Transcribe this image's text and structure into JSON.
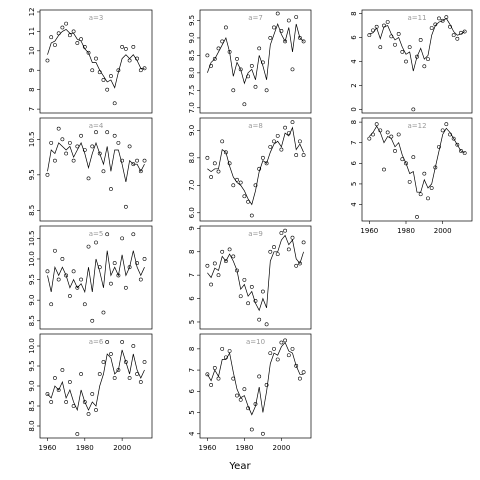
{
  "x_label": "Year",
  "chart_data": [
    {
      "type": "scatter",
      "label": "a=3",
      "xlim": [
        1956,
        2016
      ],
      "ylim": [
        6.8,
        12.1
      ],
      "yticks": [
        7,
        8,
        9,
        10,
        11,
        12
      ],
      "x": [
        1960,
        1962,
        1964,
        1966,
        1968,
        1970,
        1972,
        1974,
        1976,
        1978,
        1980,
        1982,
        1984,
        1986,
        1988,
        1990,
        1992,
        1994,
        1996,
        1998,
        2000,
        2002,
        2004,
        2006,
        2008,
        2010,
        2012
      ],
      "values": [
        9.5,
        10.7,
        10.3,
        10.9,
        11.2,
        11.4,
        10.8,
        11.0,
        10.4,
        10.6,
        10.2,
        9.9,
        9.0,
        9.6,
        8.9,
        8.5,
        8.0,
        8.7,
        7.3,
        9.0,
        10.2,
        10.1,
        9.5,
        10.2,
        9.6,
        9.0,
        9.1
      ],
      "smooth": [
        9.8,
        10.4,
        10.5,
        10.8,
        11.0,
        11.1,
        10.9,
        10.9,
        10.6,
        10.5,
        10.1,
        9.9,
        9.4,
        9.4,
        9.0,
        8.7,
        8.4,
        8.5,
        8.1,
        8.9,
        9.6,
        9.8,
        9.6,
        9.8,
        9.5,
        9.1,
        9.1
      ]
    },
    {
      "type": "scatter",
      "label": "a=4",
      "xlim": [
        1956,
        2016
      ],
      "ylim": [
        8.2,
        11.1
      ],
      "yticks": [
        8.5,
        9.5,
        10.5
      ],
      "x": [
        1960,
        1962,
        1964,
        1966,
        1968,
        1970,
        1972,
        1974,
        1976,
        1978,
        1980,
        1982,
        1984,
        1986,
        1988,
        1990,
        1992,
        1994,
        1996,
        1998,
        2000,
        2002,
        2004,
        2006,
        2008,
        2010,
        2012
      ],
      "values": [
        9.5,
        10.4,
        9.9,
        10.8,
        10.5,
        10.1,
        10.4,
        9.9,
        10.3,
        10.6,
        10.2,
        9.4,
        10.3,
        10.7,
        10.1,
        9.6,
        10.7,
        9.1,
        10.6,
        10.4,
        9.9,
        8.6,
        10.3,
        9.8,
        9.9,
        9.6,
        9.9
      ],
      "smooth": [
        9.6,
        10.2,
        10.1,
        10.4,
        10.3,
        10.2,
        10.3,
        10.0,
        10.2,
        10.4,
        10.1,
        9.7,
        10.1,
        10.4,
        10.1,
        9.8,
        10.3,
        9.6,
        10.2,
        10.2,
        9.8,
        9.3,
        9.9,
        9.8,
        9.8,
        9.6,
        9.8
      ]
    },
    {
      "type": "scatter",
      "label": "a=5",
      "xlim": [
        1956,
        2016
      ],
      "ylim": [
        8.3,
        10.8
      ],
      "yticks": [
        8.5,
        {
          "value": 9,
          "label": "9.0"
        },
        9.5,
        {
          "value": 10,
          "label": "10.0"
        },
        10.5
      ],
      "x": [
        1960,
        1962,
        1964,
        1966,
        1968,
        1970,
        1972,
        1974,
        1976,
        1978,
        1980,
        1982,
        1984,
        1986,
        1988,
        1990,
        1992,
        1994,
        1996,
        1998,
        2000,
        2002,
        2004,
        2006,
        2008,
        2010,
        2012
      ],
      "values": [
        9.7,
        8.9,
        10.2,
        9.5,
        10.0,
        9.6,
        9.1,
        9.7,
        9.3,
        9.5,
        8.9,
        10.3,
        8.5,
        10.4,
        9.8,
        8.7,
        10.6,
        9.4,
        9.9,
        9.6,
        10.5,
        9.3,
        9.8,
        10.6,
        9.9,
        9.5,
        10.0
      ],
      "smooth": [
        9.6,
        9.2,
        9.8,
        9.6,
        9.8,
        9.6,
        9.3,
        9.5,
        9.3,
        9.4,
        9.2,
        9.8,
        9.2,
        10.0,
        9.7,
        9.3,
        10.2,
        9.6,
        9.8,
        9.6,
        10.1,
        9.6,
        9.8,
        10.2,
        9.8,
        9.6,
        9.8
      ]
    },
    {
      "type": "scatter",
      "label": "a=6",
      "xlim": [
        1956,
        2016
      ],
      "ylim": [
        7.7,
        10.3
      ],
      "xticks": [
        1960,
        1980,
        2000
      ],
      "yticks": [
        {
          "value": 8,
          "label": "8.0"
        },
        8.5,
        {
          "value": 9,
          "label": "9.0"
        },
        9.5,
        {
          "value": 10,
          "label": "10.0"
        }
      ],
      "x": [
        1960,
        1962,
        1964,
        1966,
        1968,
        1970,
        1972,
        1974,
        1976,
        1978,
        1980,
        1982,
        1984,
        1986,
        1988,
        1990,
        1992,
        1994,
        1996,
        1998,
        2000,
        2002,
        2004,
        2006,
        2008,
        2010,
        2012
      ],
      "values": [
        8.8,
        8.6,
        9.2,
        8.9,
        9.4,
        8.6,
        9.1,
        8.5,
        7.8,
        9.3,
        8.6,
        8.3,
        8.8,
        8.4,
        9.3,
        9.6,
        10.1,
        9.8,
        9.2,
        9.4,
        10.1,
        9.6,
        9.2,
        10.0,
        9.3,
        9.1,
        9.6
      ],
      "smooth": [
        8.8,
        8.7,
        9.0,
        8.9,
        9.1,
        8.7,
        8.9,
        8.6,
        8.4,
        8.9,
        8.6,
        8.4,
        8.6,
        8.5,
        9.0,
        9.3,
        9.8,
        9.7,
        9.3,
        9.4,
        9.9,
        9.6,
        9.3,
        9.8,
        9.4,
        9.2,
        9.4
      ]
    },
    {
      "type": "scatter",
      "label": "a=7",
      "xlim": [
        1956,
        2016
      ],
      "ylim": [
        6.85,
        9.8
      ],
      "yticks": [
        {
          "value": 7,
          "label": "7.0"
        },
        7.5,
        {
          "value": 8,
          "label": "8.0"
        },
        8.5,
        {
          "value": 9,
          "label": "9.0"
        },
        9.5
      ],
      "x": [
        1960,
        1962,
        1964,
        1966,
        1968,
        1970,
        1972,
        1974,
        1976,
        1978,
        1980,
        1982,
        1984,
        1986,
        1988,
        1990,
        1992,
        1994,
        1996,
        1998,
        2000,
        2002,
        2004,
        2006,
        2008,
        2010,
        2012
      ],
      "values": [
        8.5,
        8.2,
        8.4,
        8.7,
        8.9,
        9.3,
        8.6,
        7.5,
        8.4,
        8.1,
        7.1,
        7.9,
        8.2,
        7.6,
        8.7,
        8.3,
        7.5,
        9.0,
        9.3,
        9.7,
        9.2,
        8.9,
        9.5,
        8.1,
        9.6,
        9.0,
        8.9
      ],
      "smooth": [
        8.0,
        8.3,
        8.4,
        8.6,
        8.8,
        9.0,
        8.6,
        7.9,
        8.3,
        8.1,
        7.7,
        8.0,
        8.1,
        7.8,
        8.5,
        8.2,
        7.8,
        8.8,
        9.1,
        9.4,
        9.1,
        8.9,
        9.3,
        8.6,
        9.4,
        9.0,
        8.9
      ]
    },
    {
      "type": "scatter",
      "label": "a=8",
      "xlim": [
        1956,
        2016
      ],
      "ylim": [
        5.7,
        9.45
      ],
      "yticks": [
        {
          "value": 6,
          "label": "6.0"
        },
        {
          "value": 7,
          "label": "7.0"
        },
        {
          "value": 8,
          "label": "8.0"
        },
        {
          "value": 9,
          "label": "9.0"
        }
      ],
      "x": [
        1960,
        1962,
        1964,
        1966,
        1968,
        1970,
        1972,
        1974,
        1976,
        1978,
        1980,
        1982,
        1984,
        1986,
        1988,
        1990,
        1992,
        1994,
        1996,
        1998,
        2000,
        2002,
        2004,
        2006,
        2008,
        2010,
        2012
      ],
      "values": [
        8.0,
        7.3,
        7.8,
        7.5,
        8.6,
        8.2,
        7.8,
        7.0,
        7.2,
        7.1,
        6.6,
        6.4,
        5.9,
        7.0,
        7.6,
        8.0,
        7.8,
        8.4,
        8.6,
        8.8,
        8.3,
        9.1,
        8.9,
        9.3,
        8.1,
        8.6,
        8.1
      ],
      "smooth": [
        7.6,
        7.5,
        7.6,
        7.6,
        8.3,
        8.2,
        7.7,
        7.3,
        7.1,
        7.0,
        6.8,
        6.5,
        6.3,
        6.8,
        7.5,
        7.9,
        7.8,
        8.2,
        8.5,
        8.6,
        8.4,
        8.9,
        8.8,
        9.1,
        8.3,
        8.5,
        8.2
      ]
    },
    {
      "type": "scatter",
      "label": "a=9",
      "xlim": [
        1956,
        2016
      ],
      "ylim": [
        4.7,
        9.1
      ],
      "yticks": [
        5,
        6,
        7,
        8,
        9
      ],
      "x": [
        1960,
        1962,
        1964,
        1966,
        1968,
        1970,
        1972,
        1974,
        1976,
        1978,
        1980,
        1982,
        1984,
        1986,
        1988,
        1990,
        1992,
        1994,
        1996,
        1998,
        2000,
        2002,
        2004,
        2006,
        2008,
        2010,
        2012
      ],
      "values": [
        7.4,
        6.6,
        7.5,
        7.0,
        8.0,
        7.6,
        8.1,
        7.8,
        7.2,
        6.1,
        6.8,
        5.8,
        6.5,
        5.9,
        5.1,
        6.3,
        4.9,
        8.0,
        8.2,
        7.9,
        8.8,
        8.9,
        8.1,
        8.6,
        7.4,
        7.5,
        8.4
      ],
      "smooth": [
        7.1,
        6.9,
        7.3,
        7.2,
        7.8,
        7.6,
        7.9,
        7.6,
        7.2,
        6.4,
        6.6,
        6.1,
        6.3,
        5.8,
        5.5,
        6.0,
        5.6,
        7.6,
        8.0,
        8.0,
        8.5,
        8.7,
        8.3,
        8.5,
        7.7,
        7.5,
        8.0
      ]
    },
    {
      "type": "scatter",
      "label": "a=10",
      "xlim": [
        1956,
        2016
      ],
      "ylim": [
        3.8,
        8.7
      ],
      "xticks": [
        1960,
        1980,
        2000
      ],
      "yticks": [
        4,
        5,
        6,
        7,
        8
      ],
      "x": [
        1960,
        1962,
        1964,
        1966,
        1968,
        1970,
        1972,
        1974,
        1976,
        1978,
        1980,
        1982,
        1984,
        1986,
        1988,
        1990,
        1992,
        1994,
        1996,
        1998,
        2000,
        2002,
        2004,
        2006,
        2008,
        2010,
        2012
      ],
      "values": [
        6.8,
        6.3,
        7.1,
        6.6,
        8.0,
        7.6,
        7.9,
        6.6,
        5.8,
        5.6,
        6.1,
        5.2,
        4.2,
        5.4,
        6.7,
        4.0,
        6.3,
        7.8,
        8.0,
        7.5,
        8.3,
        8.4,
        7.7,
        8.0,
        7.2,
        6.6,
        6.9
      ],
      "smooth": [
        6.8,
        6.5,
        7.0,
        6.7,
        7.5,
        7.5,
        7.8,
        6.9,
        6.1,
        5.7,
        5.8,
        5.3,
        4.9,
        5.3,
        6.2,
        5.0,
        6.0,
        7.3,
        7.8,
        7.7,
        8.1,
        8.3,
        7.9,
        7.8,
        7.2,
        6.8,
        6.8
      ]
    },
    {
      "type": "scatter",
      "label": "a=11",
      "xlim": [
        1956,
        2016
      ],
      "ylim": [
        -0.3,
        8.3
      ],
      "yticks": [
        0,
        2,
        4,
        6,
        8
      ],
      "x": [
        1960,
        1962,
        1964,
        1966,
        1968,
        1970,
        1972,
        1974,
        1976,
        1978,
        1980,
        1982,
        1984,
        1986,
        1988,
        1990,
        1992,
        1994,
        1996,
        1998,
        2000,
        2002,
        2004,
        2006,
        2008,
        2010,
        2012
      ],
      "values": [
        6.2,
        6.6,
        6.9,
        5.2,
        7.0,
        7.3,
        6.1,
        5.4,
        6.3,
        4.8,
        4.0,
        5.2,
        0,
        4.4,
        5.8,
        3.6,
        4.2,
        6.8,
        7.1,
        7.6,
        7.4,
        7.7,
        6.9,
        6.2,
        5.9,
        6.4,
        6.5
      ],
      "smooth": [
        6.3,
        6.4,
        6.8,
        5.9,
        6.9,
        7.0,
        6.3,
        5.8,
        6.0,
        5.2,
        4.6,
        4.8,
        3.2,
        4.4,
        5.1,
        4.2,
        4.5,
        6.2,
        7.0,
        7.3,
        7.4,
        7.6,
        7.1,
        6.5,
        6.2,
        6.3,
        6.5
      ]
    },
    {
      "type": "scatter",
      "label": "a=12",
      "xlim": [
        1956,
        2016
      ],
      "ylim": [
        3.2,
        8.2
      ],
      "xticks": [
        1960,
        1980,
        2000
      ],
      "yticks": [
        4,
        5,
        6,
        7,
        8
      ],
      "x": [
        1960,
        1962,
        1964,
        1966,
        1968,
        1970,
        1972,
        1974,
        1976,
        1978,
        1980,
        1982,
        1984,
        1986,
        1988,
        1990,
        1992,
        1994,
        1996,
        1998,
        2000,
        2002,
        2004,
        2006,
        2008,
        2010,
        2012
      ],
      "values": [
        7.2,
        7.4,
        7.9,
        7.6,
        5.7,
        7.5,
        7.3,
        6.6,
        7.4,
        6.2,
        6.0,
        5.1,
        6.3,
        3.4,
        4.5,
        5.5,
        4.3,
        4.8,
        5.8,
        6.8,
        7.6,
        7.9,
        7.4,
        7.2,
        6.9,
        6.6,
        6.5
      ],
      "smooth": [
        7.3,
        7.5,
        7.8,
        7.5,
        7.0,
        7.3,
        7.2,
        6.8,
        7.0,
        6.4,
        6.0,
        5.5,
        5.6,
        4.6,
        4.6,
        5.2,
        4.8,
        5.0,
        5.8,
        6.6,
        7.4,
        7.7,
        7.5,
        7.2,
        6.9,
        6.6,
        6.5
      ]
    }
  ]
}
